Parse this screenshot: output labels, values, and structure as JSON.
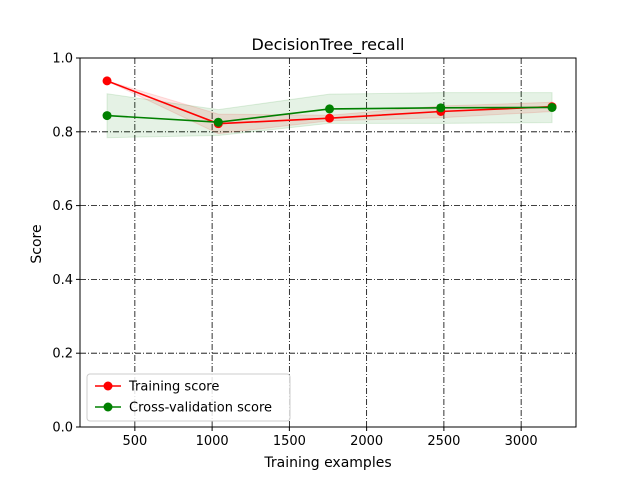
{
  "chart_data": {
    "type": "line",
    "title": "DecisionTree_recall",
    "xlabel": "Training examples",
    "ylabel": "Score",
    "xlim": [
      145,
      3355
    ],
    "ylim": [
      0.0,
      1.0
    ],
    "xticks": [
      500,
      1000,
      1500,
      2000,
      2500,
      3000
    ],
    "yticks": [
      0.0,
      0.2,
      0.4,
      0.6,
      0.8,
      1.0
    ],
    "grid": true,
    "legend_position": "lower-left",
    "series": [
      {
        "name": "Training score",
        "color": "#ff0000",
        "x": [
          320,
          1040,
          1760,
          2480,
          3200
        ],
        "y": [
          0.938,
          0.822,
          0.837,
          0.855,
          0.868
        ],
        "band_low": [
          0.938,
          0.795,
          0.83,
          0.838,
          0.855
        ],
        "band_high": [
          0.938,
          0.848,
          0.845,
          0.87,
          0.88
        ]
      },
      {
        "name": "Cross-validation score",
        "color": "#008000",
        "x": [
          320,
          1040,
          1760,
          2480,
          3200
        ],
        "y": [
          0.844,
          0.826,
          0.862,
          0.865,
          0.866
        ],
        "band_low": [
          0.784,
          0.79,
          0.823,
          0.823,
          0.825
        ],
        "band_high": [
          0.903,
          0.86,
          0.902,
          0.906,
          0.906
        ]
      }
    ]
  }
}
